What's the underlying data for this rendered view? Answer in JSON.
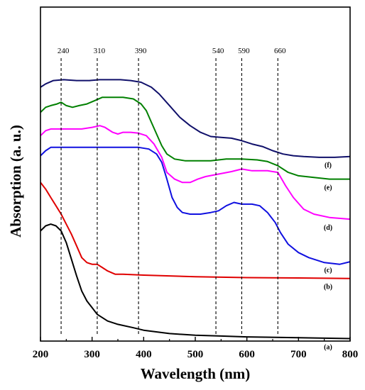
{
  "chart_data": {
    "type": "line",
    "title": "",
    "xlabel": "Wavelength (nm)",
    "ylabel": "Absorption (a. u.)",
    "xlim": [
      200,
      800
    ],
    "x_ticks": [
      "200",
      "300",
      "400",
      "500",
      "600",
      "700",
      "800"
    ],
    "y_ticks_labeled": false,
    "reference_lines": [
      {
        "x": 240,
        "label": "240"
      },
      {
        "x": 310,
        "label": "310"
      },
      {
        "x": 390,
        "label": "390"
      },
      {
        "x": 540,
        "label": "540"
      },
      {
        "x": 590,
        "label": "590"
      },
      {
        "x": 660,
        "label": "660"
      }
    ],
    "series": [
      {
        "name": "(a)",
        "color": "#000000",
        "points": [
          [
            200,
            0.66
          ],
          [
            210,
            0.69
          ],
          [
            220,
            0.7
          ],
          [
            230,
            0.69
          ],
          [
            240,
            0.66
          ],
          [
            250,
            0.59
          ],
          [
            260,
            0.49
          ],
          [
            270,
            0.39
          ],
          [
            280,
            0.3
          ],
          [
            290,
            0.24
          ],
          [
            300,
            0.2
          ],
          [
            310,
            0.16
          ],
          [
            330,
            0.12
          ],
          [
            350,
            0.1
          ],
          [
            380,
            0.08
          ],
          [
            400,
            0.065
          ],
          [
            450,
            0.045
          ],
          [
            500,
            0.035
          ],
          [
            550,
            0.03
          ],
          [
            600,
            0.025
          ],
          [
            700,
            0.02
          ],
          [
            800,
            0.015
          ]
        ]
      },
      {
        "name": "(b)",
        "color": "#e00000",
        "points": [
          [
            200,
            0.95
          ],
          [
            210,
            0.91
          ],
          [
            220,
            0.86
          ],
          [
            230,
            0.81
          ],
          [
            240,
            0.76
          ],
          [
            250,
            0.7
          ],
          [
            260,
            0.64
          ],
          [
            270,
            0.57
          ],
          [
            280,
            0.5
          ],
          [
            290,
            0.47
          ],
          [
            300,
            0.46
          ],
          [
            310,
            0.46
          ],
          [
            320,
            0.44
          ],
          [
            330,
            0.42
          ],
          [
            345,
            0.4
          ],
          [
            360,
            0.4
          ],
          [
            400,
            0.395
          ],
          [
            500,
            0.385
          ],
          [
            600,
            0.38
          ],
          [
            700,
            0.378
          ],
          [
            800,
            0.375
          ]
        ]
      },
      {
        "name": "(c)",
        "color": "#1010e0",
        "points": [
          [
            200,
            1.11
          ],
          [
            210,
            1.14
          ],
          [
            220,
            1.16
          ],
          [
            240,
            1.16
          ],
          [
            260,
            1.16
          ],
          [
            300,
            1.16
          ],
          [
            340,
            1.16
          ],
          [
            370,
            1.16
          ],
          [
            390,
            1.16
          ],
          [
            410,
            1.15
          ],
          [
            425,
            1.12
          ],
          [
            435,
            1.07
          ],
          [
            445,
            0.97
          ],
          [
            455,
            0.86
          ],
          [
            465,
            0.8
          ],
          [
            475,
            0.77
          ],
          [
            490,
            0.76
          ],
          [
            510,
            0.76
          ],
          [
            530,
            0.77
          ],
          [
            545,
            0.78
          ],
          [
            560,
            0.81
          ],
          [
            575,
            0.83
          ],
          [
            590,
            0.82
          ],
          [
            610,
            0.82
          ],
          [
            625,
            0.81
          ],
          [
            640,
            0.77
          ],
          [
            655,
            0.71
          ],
          [
            665,
            0.65
          ],
          [
            680,
            0.58
          ],
          [
            700,
            0.53
          ],
          [
            720,
            0.5
          ],
          [
            750,
            0.47
          ],
          [
            780,
            0.46
          ],
          [
            800,
            0.475
          ]
        ]
      },
      {
        "name": "(d)",
        "color": "#ff00ff",
        "points": [
          [
            200,
            1.23
          ],
          [
            210,
            1.26
          ],
          [
            220,
            1.27
          ],
          [
            240,
            1.27
          ],
          [
            260,
            1.27
          ],
          [
            280,
            1.27
          ],
          [
            300,
            1.28
          ],
          [
            315,
            1.29
          ],
          [
            325,
            1.28
          ],
          [
            340,
            1.25
          ],
          [
            350,
            1.24
          ],
          [
            360,
            1.25
          ],
          [
            375,
            1.25
          ],
          [
            390,
            1.245
          ],
          [
            405,
            1.23
          ],
          [
            420,
            1.18
          ],
          [
            435,
            1.1
          ],
          [
            445,
            1.01
          ],
          [
            460,
            0.97
          ],
          [
            475,
            0.95
          ],
          [
            490,
            0.95
          ],
          [
            505,
            0.97
          ],
          [
            520,
            0.985
          ],
          [
            545,
            1.0
          ],
          [
            570,
            1.015
          ],
          [
            590,
            1.03
          ],
          [
            610,
            1.02
          ],
          [
            640,
            1.02
          ],
          [
            660,
            1.01
          ],
          [
            675,
            0.93
          ],
          [
            690,
            0.86
          ],
          [
            710,
            0.79
          ],
          [
            730,
            0.76
          ],
          [
            760,
            0.74
          ],
          [
            800,
            0.73
          ]
        ]
      },
      {
        "name": "(e)",
        "color": "#008000",
        "points": [
          [
            200,
            1.37
          ],
          [
            210,
            1.4
          ],
          [
            220,
            1.41
          ],
          [
            232,
            1.42
          ],
          [
            240,
            1.43
          ],
          [
            250,
            1.41
          ],
          [
            262,
            1.4
          ],
          [
            275,
            1.41
          ],
          [
            290,
            1.42
          ],
          [
            305,
            1.44
          ],
          [
            320,
            1.46
          ],
          [
            340,
            1.46
          ],
          [
            360,
            1.46
          ],
          [
            380,
            1.45
          ],
          [
            395,
            1.42
          ],
          [
            405,
            1.38
          ],
          [
            415,
            1.31
          ],
          [
            425,
            1.24
          ],
          [
            435,
            1.17
          ],
          [
            445,
            1.12
          ],
          [
            460,
            1.09
          ],
          [
            480,
            1.08
          ],
          [
            500,
            1.08
          ],
          [
            530,
            1.08
          ],
          [
            560,
            1.09
          ],
          [
            590,
            1.09
          ],
          [
            620,
            1.085
          ],
          [
            640,
            1.075
          ],
          [
            660,
            1.05
          ],
          [
            680,
            1.01
          ],
          [
            700,
            0.99
          ],
          [
            730,
            0.98
          ],
          [
            760,
            0.97
          ],
          [
            800,
            0.97
          ]
        ]
      },
      {
        "name": "(f)",
        "color": "#10106a",
        "points": [
          [
            200,
            1.52
          ],
          [
            210,
            1.54
          ],
          [
            225,
            1.56
          ],
          [
            245,
            1.565
          ],
          [
            270,
            1.56
          ],
          [
            295,
            1.56
          ],
          [
            315,
            1.565
          ],
          [
            335,
            1.565
          ],
          [
            355,
            1.565
          ],
          [
            375,
            1.56
          ],
          [
            395,
            1.55
          ],
          [
            415,
            1.52
          ],
          [
            430,
            1.48
          ],
          [
            450,
            1.41
          ],
          [
            470,
            1.34
          ],
          [
            490,
            1.29
          ],
          [
            510,
            1.25
          ],
          [
            530,
            1.225
          ],
          [
            550,
            1.22
          ],
          [
            570,
            1.215
          ],
          [
            590,
            1.2
          ],
          [
            610,
            1.18
          ],
          [
            630,
            1.165
          ],
          [
            650,
            1.14
          ],
          [
            670,
            1.12
          ],
          [
            690,
            1.11
          ],
          [
            710,
            1.105
          ],
          [
            740,
            1.1
          ],
          [
            770,
            1.1
          ],
          [
            800,
            1.105
          ]
        ]
      }
    ]
  }
}
